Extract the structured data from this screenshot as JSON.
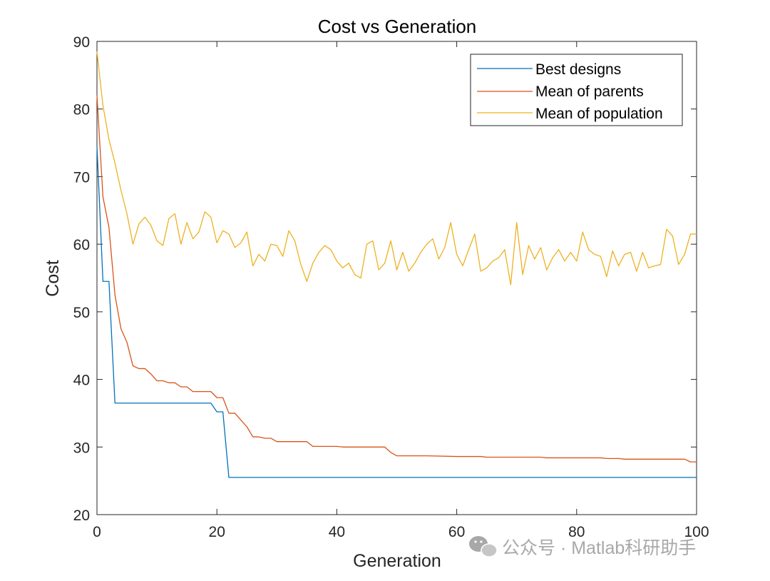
{
  "chart_data": {
    "type": "line",
    "title": "Cost vs Generation",
    "xlabel": "Generation",
    "ylabel": "Cost",
    "xlim": [
      0,
      100
    ],
    "ylim": [
      20,
      90
    ],
    "xticks": [
      0,
      20,
      40,
      60,
      80,
      100
    ],
    "yticks": [
      20,
      30,
      40,
      50,
      60,
      70,
      80,
      90
    ],
    "xtick_labels": [
      "0",
      "20",
      "40",
      "60",
      "80",
      "100"
    ],
    "ytick_labels": [
      "20",
      "30",
      "40",
      "50",
      "60",
      "70",
      "80",
      "90"
    ],
    "grid": false,
    "legend_position": "top-right",
    "series": [
      {
        "name": "Best designs",
        "color": "#0072bd",
        "x": [
          0,
          1,
          2,
          3,
          19,
          20,
          21,
          22,
          100
        ],
        "y": [
          74.5,
          54.5,
          54.5,
          36.5,
          36.5,
          35.2,
          35.2,
          25.5,
          25.5
        ]
      },
      {
        "name": "Mean of parents",
        "color": "#d95319",
        "x": [
          0,
          1,
          2,
          3,
          4,
          5,
          6,
          7,
          8,
          9,
          10,
          11,
          12,
          13,
          14,
          15,
          16,
          17,
          18,
          19,
          20,
          21,
          22,
          23,
          24,
          25,
          26,
          27,
          28,
          29,
          30,
          31,
          32,
          33,
          34,
          35,
          36,
          37,
          38,
          39,
          40,
          41,
          42,
          43,
          44,
          45,
          46,
          47,
          48,
          49,
          50,
          55,
          60,
          64,
          65,
          70,
          74,
          75,
          80,
          84,
          85,
          87,
          88,
          90,
          95,
          98,
          99,
          100
        ],
        "y": [
          82,
          67,
          62.5,
          52.5,
          47.5,
          45.5,
          42,
          41.6,
          41.6,
          40.8,
          39.8,
          39.8,
          39.5,
          39.5,
          38.9,
          38.9,
          38.2,
          38.2,
          38.2,
          38.2,
          37.3,
          37.3,
          35,
          35,
          34,
          33,
          31.5,
          31.5,
          31.3,
          31.3,
          30.8,
          30.8,
          30.8,
          30.8,
          30.8,
          30.8,
          30.1,
          30.1,
          30.1,
          30.1,
          30.1,
          30.0,
          30.0,
          30.0,
          30.0,
          30.0,
          30.0,
          30.0,
          30.0,
          29.2,
          28.7,
          28.7,
          28.6,
          28.6,
          28.5,
          28.5,
          28.5,
          28.4,
          28.4,
          28.4,
          28.3,
          28.3,
          28.2,
          28.2,
          28.2,
          28.2,
          27.8,
          27.8
        ]
      },
      {
        "name": "Mean of population",
        "color": "#edb120",
        "x": [
          0,
          1,
          2,
          3,
          4,
          5,
          6,
          7,
          8,
          9,
          10,
          11,
          12,
          13,
          14,
          15,
          16,
          17,
          18,
          19,
          20,
          21,
          22,
          23,
          24,
          25,
          26,
          27,
          28,
          29,
          30,
          31,
          32,
          33,
          34,
          35,
          36,
          37,
          38,
          39,
          40,
          41,
          42,
          43,
          44,
          45,
          46,
          47,
          48,
          49,
          50,
          51,
          52,
          53,
          54,
          55,
          56,
          57,
          58,
          59,
          60,
          61,
          62,
          63,
          64,
          65,
          66,
          67,
          68,
          69,
          70,
          71,
          72,
          73,
          74,
          75,
          76,
          77,
          78,
          79,
          80,
          81,
          82,
          83,
          84,
          85,
          86,
          87,
          88,
          89,
          90,
          91,
          92,
          93,
          94,
          95,
          96,
          97,
          98,
          99,
          100
        ],
        "y": [
          88.5,
          80.5,
          75.5,
          72,
          68,
          64.5,
          60,
          63,
          64,
          62.8,
          60.5,
          59.8,
          63.8,
          64.5,
          60,
          63.2,
          60.8,
          61.8,
          64.8,
          64,
          60.2,
          62,
          61.5,
          59.5,
          60.2,
          61.8,
          56.8,
          58.5,
          57.5,
          60,
          59.8,
          58.2,
          62,
          60.5,
          57,
          54.5,
          57.2,
          58.8,
          59.8,
          59.2,
          57.5,
          56.5,
          57.2,
          55.5,
          55,
          60,
          60.5,
          56.2,
          57.2,
          60.5,
          56.2,
          58.8,
          56,
          57.2,
          58.8,
          60,
          60.8,
          57.8,
          59.5,
          63.2,
          58.5,
          56.8,
          59.2,
          61.5,
          56,
          56.5,
          57.5,
          58,
          59.2,
          54,
          63.2,
          55.5,
          59.8,
          57.8,
          59.5,
          56.2,
          58,
          59.2,
          57.5,
          58.8,
          57.5,
          61.8,
          59.2,
          58.5,
          58.2,
          55.2,
          59,
          56.8,
          58.5,
          58.8,
          56,
          58.8,
          56.5,
          56.8,
          57,
          62.2,
          61.2,
          57,
          58.5,
          61.5,
          61.5
        ]
      }
    ]
  },
  "watermark": {
    "icon": "wechat-icon",
    "text": "公众号 · Matlab科研助手"
  }
}
